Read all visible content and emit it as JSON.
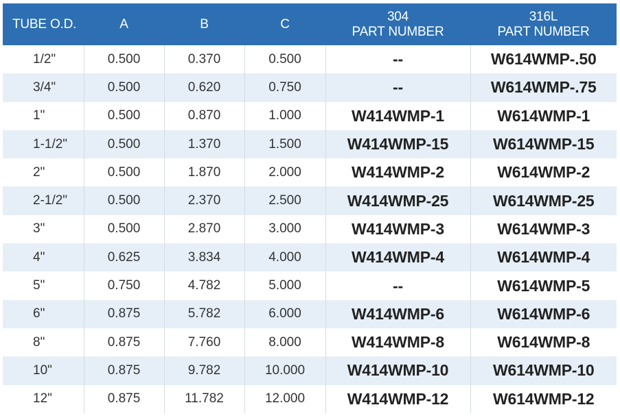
{
  "header": {
    "tube_od": "TUBE O.D.",
    "a": "A",
    "b": "B",
    "c": "C",
    "p304_line1": "304",
    "p304_line2": "PART NUMBER",
    "p316_line1": "316L",
    "p316_line2": "PART NUMBER"
  },
  "colors": {
    "header_bg": "#2d6fb2",
    "header_text": "#ffffff",
    "row_alt_bg": "#e6eff7"
  },
  "rows": [
    {
      "tube": "1/2\"",
      "a": "0.500",
      "b": "0.370",
      "c": "0.500",
      "p304": "--",
      "p316": "W614WMP-.50"
    },
    {
      "tube": "3/4\"",
      "a": "0.500",
      "b": "0.620",
      "c": "0.750",
      "p304": "--",
      "p316": "W614WMP-.75"
    },
    {
      "tube": "1\"",
      "a": "0.500",
      "b": "0.870",
      "c": "1.000",
      "p304": "W414WMP-1",
      "p316": "W614WMP-1"
    },
    {
      "tube": "1-1/2\"",
      "a": "0.500",
      "b": "1.370",
      "c": "1.500",
      "p304": "W414WMP-15",
      "p316": "W614WMP-15"
    },
    {
      "tube": "2\"",
      "a": "0.500",
      "b": "1.870",
      "c": "2.000",
      "p304": "W414WMP-2",
      "p316": "W614WMP-2"
    },
    {
      "tube": "2-1/2\"",
      "a": "0.500",
      "b": "2.370",
      "c": "2.500",
      "p304": "W414WMP-25",
      "p316": "W614WMP-25"
    },
    {
      "tube": "3\"",
      "a": "0.500",
      "b": "2.870",
      "c": "3.000",
      "p304": "W414WMP-3",
      "p316": "W614WMP-3"
    },
    {
      "tube": "4\"",
      "a": "0.625",
      "b": "3.834",
      "c": "4.000",
      "p304": "W414WMP-4",
      "p316": "W614WMP-4"
    },
    {
      "tube": "5\"",
      "a": "0.750",
      "b": "4.782",
      "c": "5.000",
      "p304": "--",
      "p316": "W614WMP-5"
    },
    {
      "tube": "6\"",
      "a": "0.875",
      "b": "5.782",
      "c": "6.000",
      "p304": "W414WMP-6",
      "p316": "W614WMP-6"
    },
    {
      "tube": "8\"",
      "a": "0.875",
      "b": "7.760",
      "c": "8.000",
      "p304": "W414WMP-8",
      "p316": "W614WMP-8"
    },
    {
      "tube": "10\"",
      "a": "0.875",
      "b": "9.782",
      "c": "10.000",
      "p304": "W414WMP-10",
      "p316": "W614WMP-10"
    },
    {
      "tube": "12\"",
      "a": "0.875",
      "b": "11.782",
      "c": "12.000",
      "p304": "W414WMP-12",
      "p316": "W614WMP-12"
    }
  ]
}
